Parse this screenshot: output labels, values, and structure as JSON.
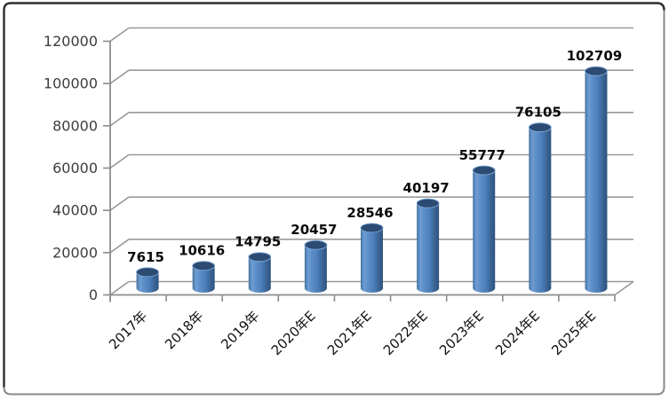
{
  "chart_data": {
    "type": "bar",
    "subtype": "3d-cylinder",
    "title": "",
    "categories": [
      "2017年",
      "2018年",
      "2019年",
      "2020年E",
      "2021年E",
      "2022年E",
      "2023年E",
      "2024年E",
      "2025年E"
    ],
    "series": [
      {
        "name": "",
        "values": [
          7615,
          10616,
          14795,
          20457,
          28546,
          40197,
          55777,
          76105,
          102709
        ]
      }
    ],
    "data_labels": [
      "7615",
      "10616",
      "14795",
      "20457",
      "28546",
      "40197",
      "55777",
      "76105",
      "102709"
    ],
    "xlabel": "",
    "ylabel": "",
    "ylim": [
      0,
      120000
    ],
    "ytick_step": 20000,
    "ytick_labels": [
      "0",
      "20000",
      "40000",
      "60000",
      "80000",
      "100000",
      "120000"
    ],
    "grid": true,
    "legend": "none",
    "x_label_rotation_deg": 45,
    "colors": {
      "bar_body_left": "#46739F",
      "bar_body_highlight": "#6D9DD4",
      "bar_body_mid": "#4F81BD",
      "bar_body_right": "#2F537D",
      "bar_top": "#2B4B73",
      "bar_top_rim": "#82AAD8",
      "gridline": "#999999",
      "axis_line": "#8C8C8C",
      "ytick_label_color": "#3D3D3D",
      "xtick_label_color": "#111111",
      "data_label_color": "#0A0A0A",
      "border_dark": "#2E2E2E",
      "border_light": "#8A8A8A",
      "background": "#FFFFFF"
    }
  }
}
